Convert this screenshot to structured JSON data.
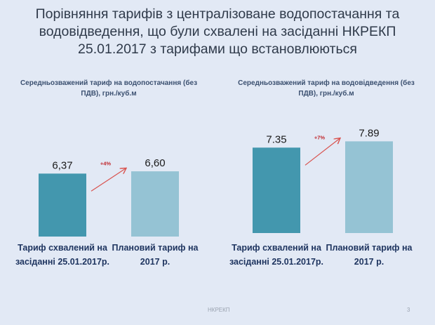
{
  "slide": {
    "title": "Порівняння тарифів з централізоване водопостачання та водовідведення, що були схвалені на засіданні НКРЕКП 25.01.2017 з тарифами що встановлюються",
    "footer": "НКРЕКП",
    "page_number": "3"
  },
  "colors": {
    "bar_approved": "#4397ae",
    "bar_planned": "#95c3d4",
    "arrow": "#d9534f",
    "pct": "#c0282d"
  },
  "chart_data": [
    {
      "type": "bar",
      "title": "Середньозважений тариф  на водопостачання (без ПДВ), грн./куб.м",
      "categories": [
        "Тариф схвалений на засіданні 25.01.2017р.",
        "Плановий тариф на 2017 р."
      ],
      "values": [
        6.37,
        6.6
      ],
      "data_labels": [
        "6,37",
        "6,60"
      ],
      "annotation": "+4%",
      "ylim": [
        0,
        14.7
      ]
    },
    {
      "type": "bar",
      "title": "Середньозважений тариф  на водовідведення (без ПДВ), грн./куб.м",
      "categories": [
        "Тариф схвалений на засіданні 25.01.2017р.",
        "Плановий тариф на 2017 р."
      ],
      "values": [
        7.35,
        7.89
      ],
      "data_labels": [
        "7.35",
        "7.89"
      ],
      "annotation": "+7%",
      "ylim": [
        0,
        12.2
      ]
    }
  ]
}
